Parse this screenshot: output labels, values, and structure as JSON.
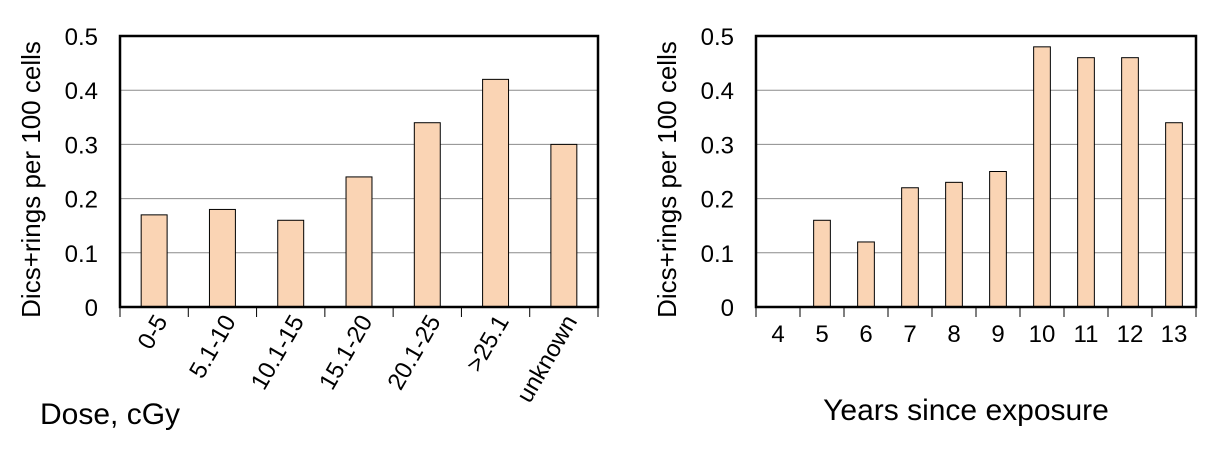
{
  "chart_data": [
    {
      "type": "bar",
      "categories": [
        "0-5",
        "5.1-10",
        "10.1-15",
        "15.1-20",
        "20.1-25",
        ">25.1",
        "unknown"
      ],
      "values": [
        0.17,
        0.18,
        0.16,
        0.24,
        0.34,
        0.42,
        0.3
      ],
      "xlabel": "Dose, cGy",
      "ylabel": "Dics+rings per 100 cells",
      "ylim": [
        0,
        0.5
      ],
      "yticks": [
        "0",
        "0.1",
        "0.2",
        "0.3",
        "0.4",
        "0.5"
      ],
      "grid": true,
      "bar_color": "#FAD4B4",
      "tick_rotation": "rotated"
    },
    {
      "type": "bar",
      "categories": [
        "4",
        "5",
        "6",
        "7",
        "8",
        "9",
        "10",
        "11",
        "12",
        "13"
      ],
      "values": [
        0,
        0.16,
        0.12,
        0.22,
        0.23,
        0.25,
        0.48,
        0.46,
        0.46,
        0.34
      ],
      "xlabel": "Years since exposure",
      "ylabel": "Dics+rings per 100 cells",
      "ylim": [
        0,
        0.5
      ],
      "yticks": [
        "0",
        "0.1",
        "0.2",
        "0.3",
        "0.4",
        "0.5"
      ],
      "grid": true,
      "bar_color": "#FAD4B4",
      "tick_rotation": "horizontal"
    }
  ]
}
